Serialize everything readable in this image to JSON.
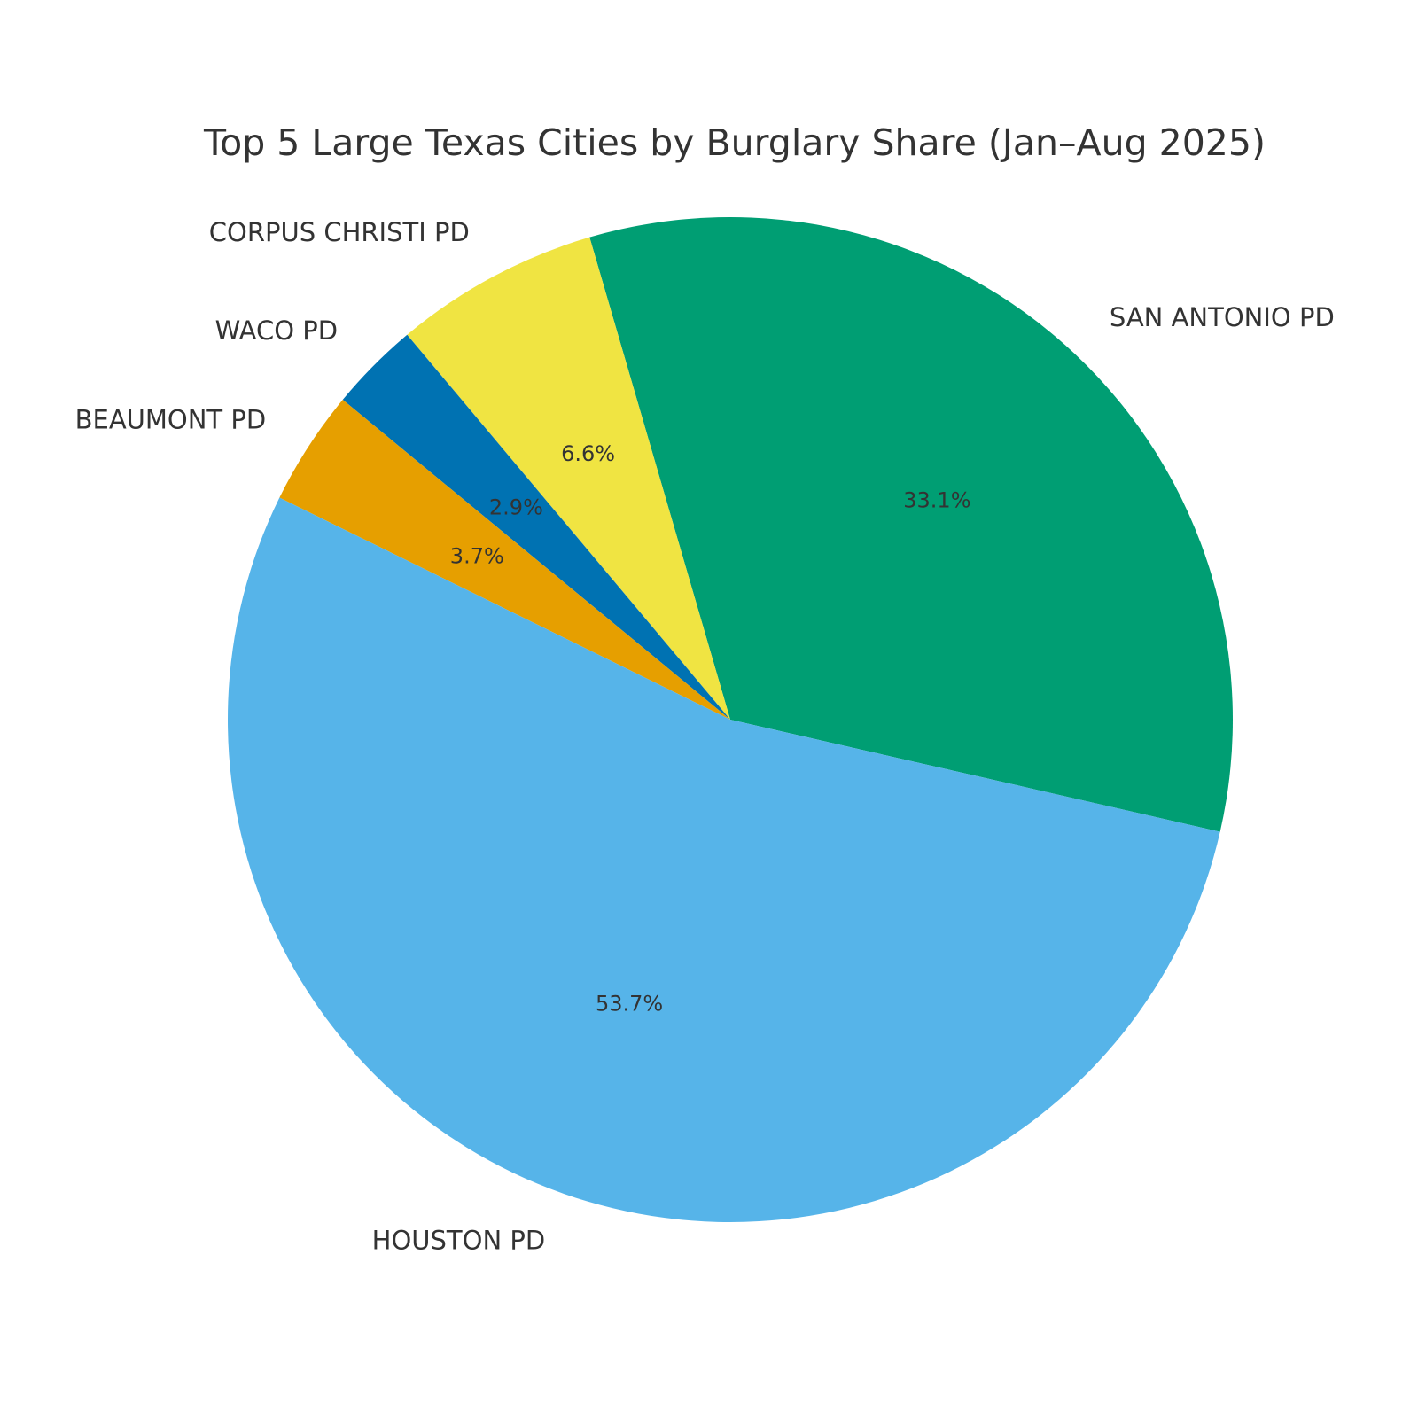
{
  "chart_data": {
    "type": "pie",
    "title": "Top 5 Large Texas Cities by Burglary Share (Jan–Aug 2025)",
    "slices": [
      {
        "label": "SAN ANTONIO PD",
        "value": 33.1,
        "pct_label": "33.1%",
        "color": "#009E73"
      },
      {
        "label": "CORPUS CHRISTI PD",
        "value": 6.6,
        "pct_label": "6.6%",
        "color": "#F0E442"
      },
      {
        "label": "WACO PD",
        "value": 2.9,
        "pct_label": "2.9%",
        "color": "#0072B2"
      },
      {
        "label": "BEAUMONT PD",
        "value": 3.7,
        "pct_label": "3.7%",
        "color": "#E69F00"
      },
      {
        "label": "HOUSTON PD",
        "value": 53.7,
        "pct_label": "53.7%",
        "color": "#56B4E9"
      }
    ],
    "start_angle_deg": -12.9,
    "direction": "counterclockwise"
  }
}
